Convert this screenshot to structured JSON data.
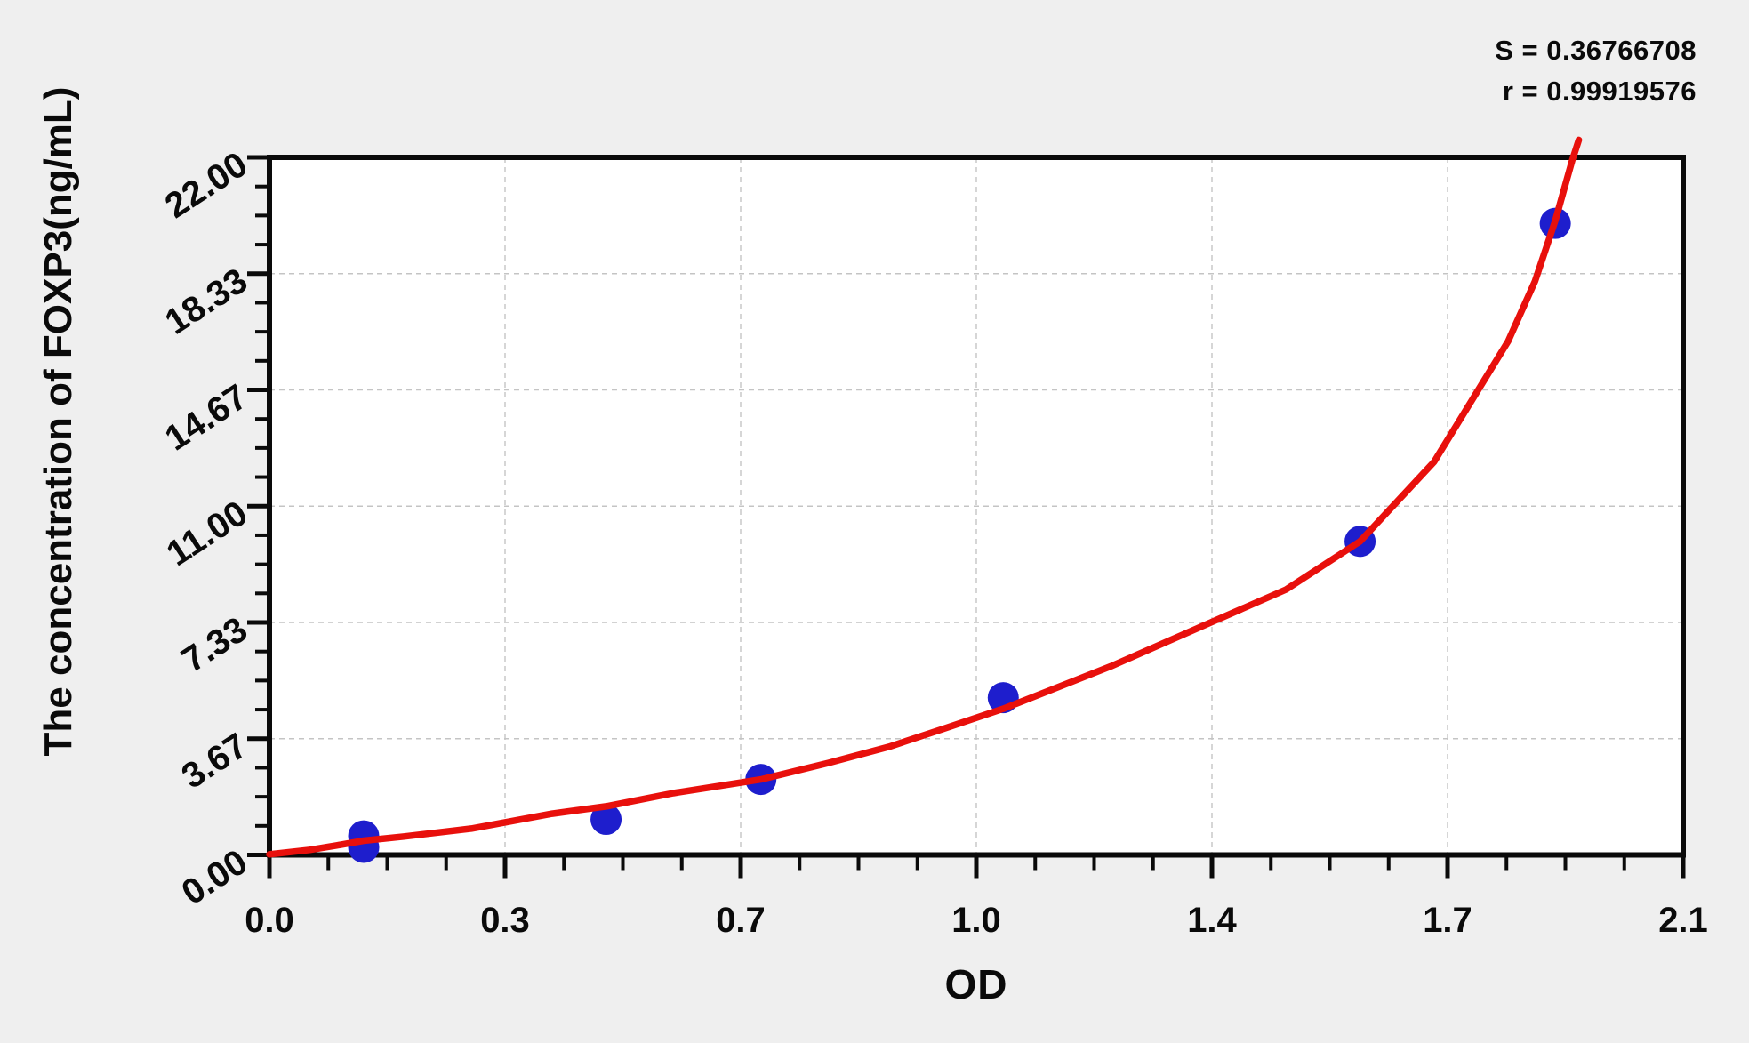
{
  "figure": {
    "background_color": "#efefef",
    "plot_background": "#ffffff",
    "frame_color": "#0a0a0a",
    "stats_lines": [
      "S = 0.36766708",
      "r = 0.99919576"
    ]
  },
  "chart_data": {
    "type": "scatter",
    "title": "",
    "xlabel": "OD",
    "ylabel": "The concentration of FOXP3(ng/mL)",
    "xlim": [
      0,
      2.1
    ],
    "ylim": [
      0,
      22
    ],
    "x_tick_values": [
      0,
      0.35,
      0.7,
      1.05,
      1.4,
      1.75,
      2.1
    ],
    "x_tick_labels": [
      "0.0",
      "0.3",
      "0.7",
      "1.0",
      "1.4",
      "1.7",
      "2.1"
    ],
    "y_tick_values": [
      0,
      3.6667,
      7.3333,
      11,
      14.6667,
      18.3333,
      22
    ],
    "y_tick_labels": [
      "0.00",
      "3.67",
      "7.33",
      "11.00",
      "14.67",
      "18.33",
      "22.00"
    ],
    "minor_divisions_per_major": 4,
    "grid": {
      "show": true,
      "style": "dashed",
      "color": "#c4c4c4",
      "on_major_lines_only": true
    },
    "legend": {
      "show": false
    },
    "stats": {
      "S": "0.36766708",
      "r": "0.99919576"
    },
    "series": [
      {
        "name": "standard-points",
        "type": "scatter",
        "color": "#1e1ecd",
        "marker_radius_px": 17.5,
        "points_od_conc": [
          [
            0.14,
            0.24
          ],
          [
            0.14,
            0.6
          ],
          [
            0.5,
            1.12
          ],
          [
            0.73,
            2.38
          ],
          [
            1.09,
            4.96
          ],
          [
            1.62,
            9.89
          ],
          [
            1.91,
            19.92
          ]
        ]
      },
      {
        "name": "fit-curve",
        "type": "line",
        "color": "#e8100c",
        "stroke_width_px": 7.5,
        "points_od_conc": [
          [
            0.0,
            0.02
          ],
          [
            0.06,
            0.16
          ],
          [
            0.1,
            0.3
          ],
          [
            0.14,
            0.45
          ],
          [
            0.2,
            0.58
          ],
          [
            0.3,
            0.83
          ],
          [
            0.42,
            1.3
          ],
          [
            0.5,
            1.53
          ],
          [
            0.6,
            1.95
          ],
          [
            0.73,
            2.38
          ],
          [
            0.83,
            2.9
          ],
          [
            0.92,
            3.41
          ],
          [
            1.0,
            3.97
          ],
          [
            1.09,
            4.61
          ],
          [
            1.25,
            5.95
          ],
          [
            1.4,
            7.35
          ],
          [
            1.51,
            8.37
          ],
          [
            1.62,
            9.89
          ],
          [
            1.73,
            12.4
          ],
          [
            1.84,
            16.2
          ],
          [
            1.88,
            18.1
          ],
          [
            1.91,
            20.0
          ],
          [
            1.935,
            21.9
          ],
          [
            1.945,
            22.55
          ]
        ]
      }
    ]
  }
}
